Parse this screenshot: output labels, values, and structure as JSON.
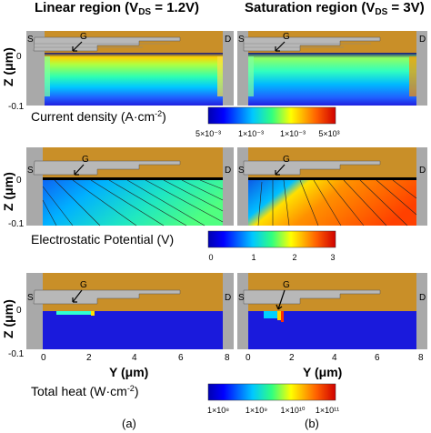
{
  "columns": {
    "linear": "Linear region (V",
    "linear_sub": "DS",
    "linear_tail": " = 1.2V)",
    "saturation": "Saturation region (V",
    "saturation_sub": "DS",
    "saturation_tail": " = 3V)"
  },
  "axes": {
    "zlabel": "Z (μm)",
    "ylabel": "Y (μm)",
    "z_ticks": [
      "0",
      "-0.1"
    ],
    "y_ticks": [
      "0",
      "2",
      "4",
      "6",
      "8"
    ]
  },
  "device_labels": {
    "source": "S",
    "drain": "D",
    "gate": "G"
  },
  "colorbars": [
    {
      "label": "Current density (A·cm",
      "label_sup": "-2",
      "label_tail": ")",
      "ticks": [
        "5×10⁻³",
        "1×10⁻³",
        "1×10⁻³",
        "5×10³"
      ]
    },
    {
      "label": "Electrostatic Potential (V)",
      "label_sup": "",
      "label_tail": "",
      "ticks": [
        "0",
        "1",
        "2",
        "3"
      ]
    },
    {
      "label": "Total heat (W·cm",
      "label_sup": "-2",
      "label_tail": ")",
      "ticks": [
        "1×10⁸",
        "1×10⁹",
        "1×10¹⁰",
        "1×10¹¹"
      ]
    }
  ],
  "panel_labels": [
    "(a)",
    "(b)"
  ],
  "colors": {
    "gate_metal": "#c98f28",
    "contact_gray": "#a9a9a9",
    "field_blue": "#1a1adc",
    "channel_navy": "#101070"
  }
}
